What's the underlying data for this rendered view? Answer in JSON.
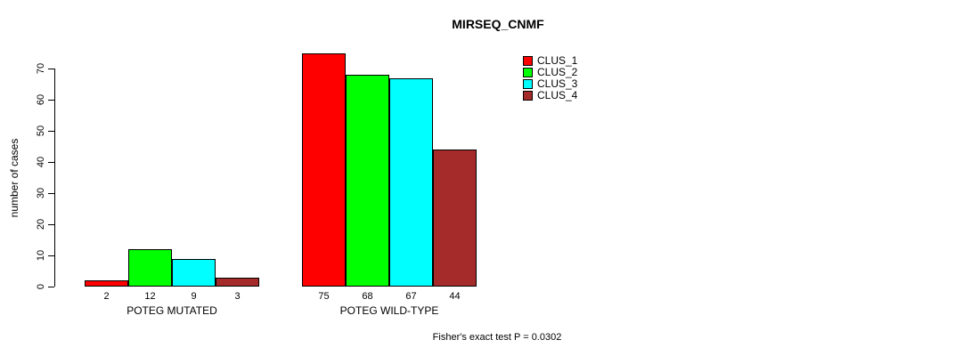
{
  "chart_data": {
    "type": "bar",
    "title": "MIRSEQ_CNMF",
    "xlabel": "",
    "ylabel": "number of cases",
    "categories": [
      "POTEG MUTATED",
      "POTEG WILD-TYPE"
    ],
    "series": [
      {
        "name": "CLUS_1",
        "color": "#FF0000",
        "values": [
          2,
          75
        ]
      },
      {
        "name": "CLUS_2",
        "color": "#00FF00",
        "values": [
          12,
          68
        ]
      },
      {
        "name": "CLUS_3",
        "color": "#00FFFF",
        "values": [
          9,
          67
        ]
      },
      {
        "name": "CLUS_4",
        "color": "#A52A2A",
        "values": [
          3,
          44
        ]
      }
    ],
    "ylim": [
      0,
      70
    ],
    "yticks": [
      0,
      10,
      20,
      30,
      40,
      50,
      60,
      70
    ],
    "bar_value_labels": true,
    "grid": false,
    "legend_position": "top-right",
    "annotation": "Fisher's exact test P = 0.0302"
  }
}
